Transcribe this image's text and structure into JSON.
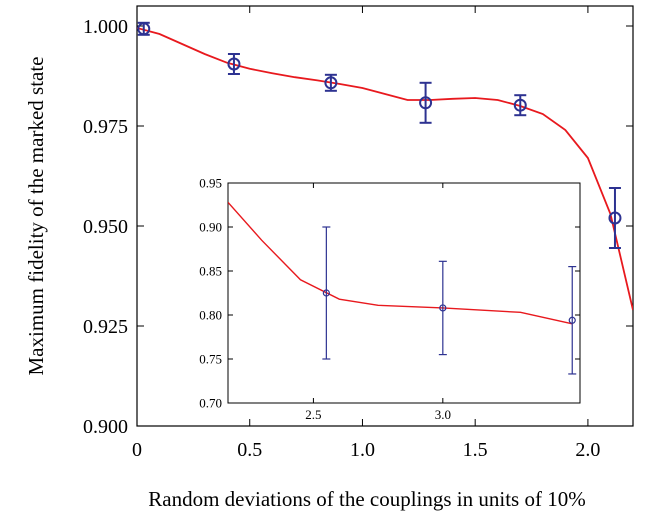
{
  "chart_data": [
    {
      "type": "line",
      "title": "",
      "xlabel": "Random deviations of the couplings in units of 10%",
      "ylabel": "Maximum fidelity of the marked state",
      "xlim": [
        0,
        2.2
      ],
      "ylim": [
        0.9,
        1.005
      ],
      "xticks": [
        0,
        0.5,
        1.0,
        1.5,
        2.0
      ],
      "xtick_labels": [
        "0",
        "0.5",
        "1.0",
        "1.5",
        "2.0"
      ],
      "yticks": [
        0.9,
        0.925,
        0.95,
        0.975,
        1.0
      ],
      "ytick_labels": [
        "0.900",
        "0.925",
        "0.950",
        "0.975",
        "1.000"
      ],
      "line": {
        "color": "#e8191e",
        "x": [
          0,
          0.1,
          0.2,
          0.3,
          0.4,
          0.5,
          0.6,
          0.7,
          0.8,
          0.9,
          1.0,
          1.1,
          1.2,
          1.3,
          1.4,
          1.5,
          1.6,
          1.7,
          1.8,
          1.9,
          2.0,
          2.1,
          2.2
        ],
        "y": [
          0.9995,
          0.998,
          0.9955,
          0.993,
          0.9908,
          0.9893,
          0.9882,
          0.9872,
          0.9864,
          0.9855,
          0.9845,
          0.983,
          0.9815,
          0.9815,
          0.9818,
          0.982,
          0.9815,
          0.98,
          0.978,
          0.974,
          0.967,
          0.953,
          0.929
        ]
      },
      "points": {
        "color": "#2d3291",
        "x": [
          0.03,
          0.43,
          0.86,
          1.28,
          1.7,
          2.12
        ],
        "y": [
          0.9993,
          0.9905,
          0.9858,
          0.9808,
          0.9802,
          0.952
        ],
        "err": [
          0.0015,
          0.0025,
          0.002,
          0.005,
          0.0025,
          0.0075
        ]
      },
      "grid": false
    },
    {
      "type": "line",
      "title": "",
      "xlim": [
        2.17,
        3.53
      ],
      "ylim": [
        0.7,
        0.95
      ],
      "xticks": [
        2.5,
        3.0
      ],
      "xtick_labels": [
        "2.5",
        "3.0"
      ],
      "yticks": [
        0.7,
        0.75,
        0.8,
        0.85,
        0.9,
        0.95
      ],
      "ytick_labels": [
        "0.70",
        "0.75",
        "0.80",
        "0.85",
        "0.90",
        "0.95"
      ],
      "line": {
        "color": "#e8191e",
        "x": [
          2.17,
          2.3,
          2.45,
          2.6,
          2.75,
          3.0,
          3.3,
          3.5
        ],
        "y": [
          0.928,
          0.885,
          0.84,
          0.818,
          0.811,
          0.808,
          0.803,
          0.79
        ]
      },
      "points": {
        "color": "#2d3291",
        "x": [
          2.55,
          3.0,
          3.5
        ],
        "y": [
          0.825,
          0.808,
          0.794
        ],
        "err": [
          0.075,
          0.053,
          0.061
        ]
      },
      "grid": false
    }
  ]
}
